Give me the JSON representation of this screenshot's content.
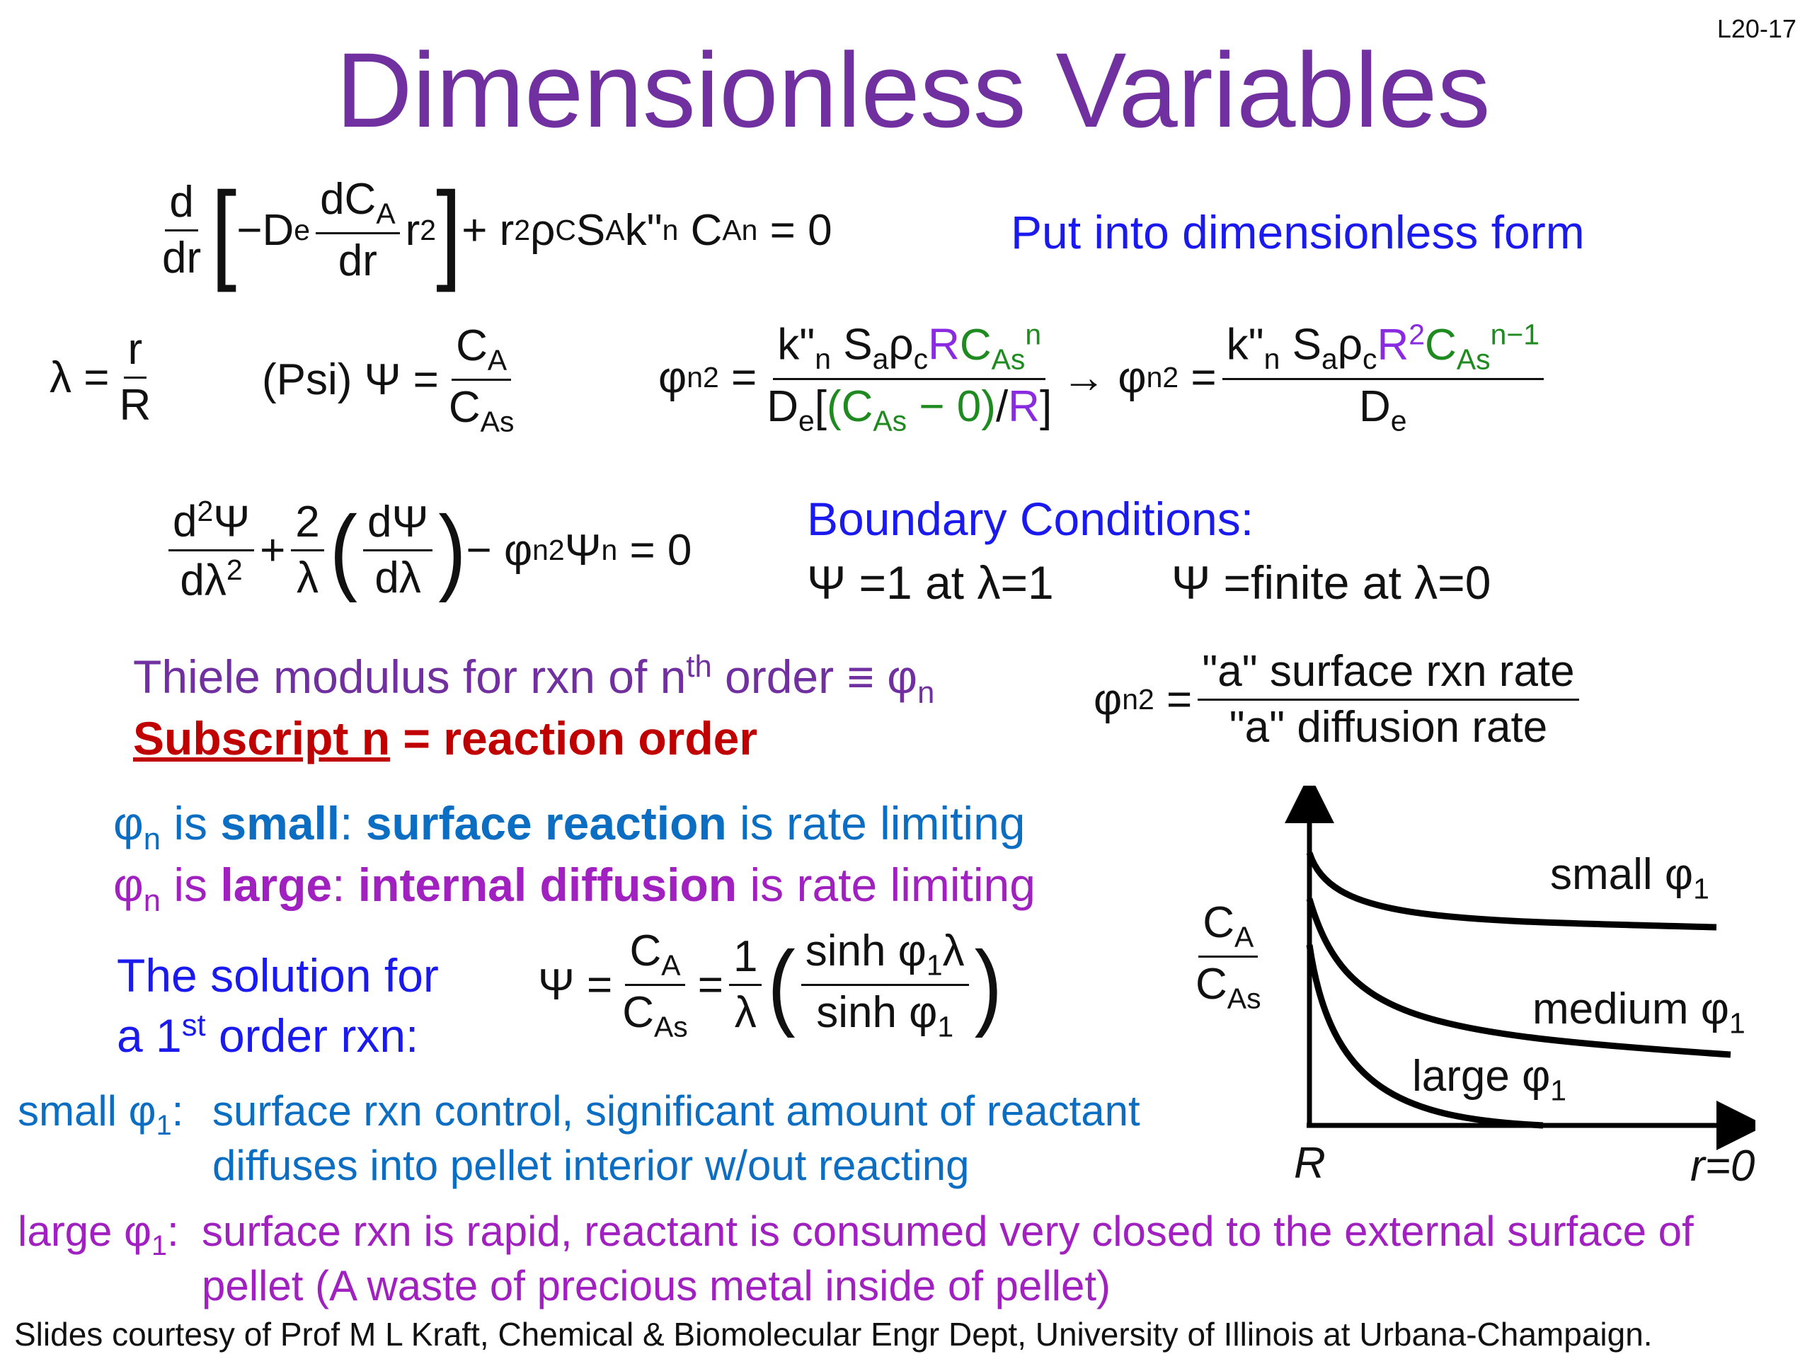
{
  "slide_number": "L20-17",
  "title": "Dimensionless Variables",
  "eq1": {
    "d": "d",
    "dr": "dr",
    "minus_de": "−D",
    "e": "e",
    "dca": "dC",
    "a_sub": "A",
    "dr2": "dr",
    "r2": "r",
    "two": "2",
    "plus": "+ r",
    "rho": "ρ",
    "c_sub": "C",
    "s": "S",
    "a2": "A",
    "k": "k\"",
    "n": "n",
    "ca": "C",
    "a3": "A",
    "n_sup": "n",
    "eq0": "= 0",
    "note": "Put into dimensionless form"
  },
  "defs": {
    "lambda_eq": "λ =",
    "r": "r",
    "R": "R",
    "psi_label": "(Psi)  Ψ =",
    "ca": "C",
    "a": "A",
    "cas": "C",
    "as": "As",
    "phi": "φ",
    "n": "n",
    "two": "2",
    "eq": "=",
    "k": "k\"",
    "kn": "n",
    "sa": "S",
    "a_sub": "a",
    "rho": "ρ",
    "c_sub": "c",
    "R_purple": "R",
    "ca2": "C",
    "as2": "As",
    "n_sup": "n",
    "de": "D",
    "e": "e",
    "open": "[",
    "paren_open": "(C",
    "as3": "As",
    "minus0": " − 0)",
    "slash": "/",
    "R2": "R",
    "close": "]",
    "arrow": "→ φ",
    "n2": "n",
    "two2": "2",
    "eq2": "=",
    "k2": "k\"",
    "kn2": "n",
    "sa2": "S",
    "a2": "a",
    "rho2": "ρ",
    "c2": "c",
    "R3": "R",
    "sq": "2",
    "ca3": "C",
    "as4": "As",
    "nm1": "n−1",
    "de2": "D",
    "e2": "e"
  },
  "eq2": {
    "d2psi": "d",
    "sq": "2",
    "psi": "Ψ",
    "dl2": "dλ",
    "sq2": "2",
    "plus": "+",
    "two": "2",
    "lam": "λ",
    "dpsi": "dΨ",
    "dlam": "dλ",
    "minus_phi": "− φ",
    "n": "n",
    "sq3": "2",
    "psi2": "Ψ",
    "n_sup": "n",
    "eq0": "= 0"
  },
  "boundary": {
    "heading": "Boundary Conditions:",
    "bc1": "Ψ =1 at λ=1",
    "bc2": "Ψ =finite at λ=0"
  },
  "thiele": {
    "line1_a": "Thiele modulus for rxn of n",
    "th": "th",
    "line1_b": " order ≡ φ",
    "n": "n",
    "subscript_u": "Subscript n",
    "subscript_rest": " = reaction order",
    "phi": "φ",
    "phi_n": "n",
    "sq": "2",
    "eq": "=",
    "rate_num": "\"a\" surface rxn rate",
    "rate_den": "\"a\"  diffusion rate"
  },
  "regimes": {
    "small_phi": "φ",
    "small_n": "n",
    "small_is": " is ",
    "small_b1": "small",
    "small_colon": ": ",
    "small_b2": "surface reaction",
    "small_rest": " is rate limiting",
    "large_phi": "φ",
    "large_n": "n",
    "large_is": " is ",
    "large_b1": "large",
    "large_colon": ": ",
    "large_b2": "internal diffusion",
    "large_rest": " is rate limiting"
  },
  "solution": {
    "line1": "The solution for",
    "line2_a": "a 1",
    "st": "st",
    "line2_b": " order rxn:",
    "psi_eq": "Ψ =",
    "ca": "C",
    "a": "A",
    "cas": "C",
    "as": "As",
    "eq": "=",
    "one": "1",
    "lam": "λ",
    "sinh_num": "sinh φ",
    "one_sub": "1",
    "lam2": "λ",
    "sinh_den": "sinh φ",
    "one_sub2": "1"
  },
  "notes": {
    "small_label": "small φ",
    "small_sub": "1",
    "small_colon": ":",
    "small_l1": "surface rxn control, significant amount of reactant",
    "small_l2": "diffuses into pellet interior w/out reacting",
    "large_label": "large φ",
    "large_sub": "1",
    "large_colon": ":",
    "large_l1": "surface rxn is rapid, reactant is consumed very closed to the external surface of",
    "large_l2": "pellet (A waste of precious metal inside of pellet)"
  },
  "plot": {
    "ylabel_num": "C",
    "ylabel_num_sub": "A",
    "ylabel_den": "C",
    "ylabel_den_sub": "As",
    "x_left": "R",
    "x_right": "r=0",
    "curves": [
      {
        "label": "small φ",
        "sub": "1"
      },
      {
        "label": "medium φ",
        "sub": "1"
      },
      {
        "label": "large φ",
        "sub": "1"
      }
    ]
  },
  "footer": "Slides courtesy of Prof M L Kraft, Chemical & Biomolecular Engr Dept, University of Illinois at Urbana-Champaign."
}
